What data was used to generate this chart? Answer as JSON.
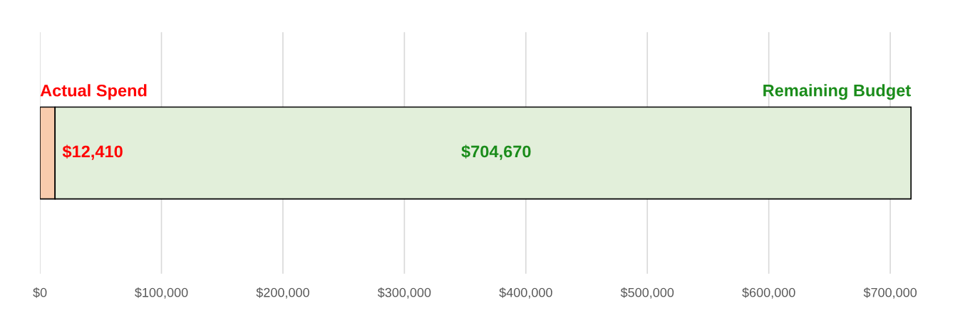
{
  "chart_data": {
    "type": "bar",
    "orientation": "horizontal",
    "stacked": true,
    "categories": [
      null
    ],
    "series": [
      {
        "name": "Actual Spend",
        "color": "#f8cbad",
        "values": [
          12410
        ],
        "value_labels": [
          "$12,410"
        ]
      },
      {
        "name": "Remaining Budget",
        "color": "#e2efda",
        "values": [
          704670
        ],
        "value_labels": [
          "$704,670"
        ]
      }
    ],
    "xlim": [
      0,
      720000
    ],
    "xticks": [
      {
        "value": 0,
        "label": "$0"
      },
      {
        "value": 100000,
        "label": "$100,000"
      },
      {
        "value": 200000,
        "label": "$200,000"
      },
      {
        "value": 300000,
        "label": "$300,000"
      },
      {
        "value": 400000,
        "label": "$400,000"
      },
      {
        "value": 500000,
        "label": "$500,000"
      },
      {
        "value": 600000,
        "label": "$600,000"
      },
      {
        "value": 700000,
        "label": "$700,000"
      }
    ],
    "grid": "x",
    "tick_labels": "x"
  }
}
